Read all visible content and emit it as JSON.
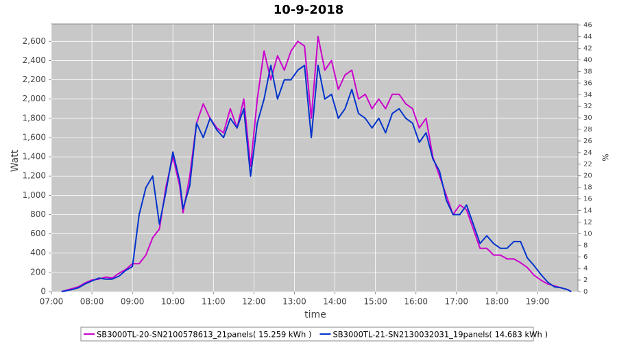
{
  "chart_data": {
    "type": "line",
    "title": "10-9-2018",
    "xlabel": "time",
    "ylabel": "Watt",
    "y2label": "%",
    "x": [
      "07:15",
      "07:30",
      "07:40",
      "07:50",
      "08:00",
      "08:10",
      "08:20",
      "08:30",
      "08:40",
      "08:50",
      "09:00",
      "09:10",
      "09:20",
      "09:30",
      "09:40",
      "09:50",
      "10:00",
      "10:10",
      "10:15",
      "10:25",
      "10:35",
      "10:45",
      "10:55",
      "11:05",
      "11:15",
      "11:25",
      "11:35",
      "11:45",
      "11:55",
      "12:05",
      "12:15",
      "12:25",
      "12:35",
      "12:45",
      "12:55",
      "13:05",
      "13:15",
      "13:25",
      "13:35",
      "13:45",
      "13:55",
      "14:05",
      "14:15",
      "14:25",
      "14:35",
      "14:45",
      "14:55",
      "15:05",
      "15:15",
      "15:25",
      "15:35",
      "15:45",
      "15:55",
      "16:05",
      "16:15",
      "16:25",
      "16:35",
      "16:45",
      "16:55",
      "17:05",
      "17:15",
      "17:25",
      "17:35",
      "17:45",
      "17:55",
      "18:05",
      "18:15",
      "18:25",
      "18:35",
      "18:45",
      "18:55",
      "19:05",
      "19:15",
      "19:25",
      "19:35",
      "19:45",
      "19:50"
    ],
    "series": [
      {
        "name": "SB3000TL-20-SN2100578613_21panels( 15.259 kWh )",
        "color": "#cc00cc",
        "values": [
          0,
          30,
          50,
          90,
          120,
          130,
          150,
          140,
          190,
          230,
          290,
          290,
          380,
          560,
          650,
          1100,
          1400,
          1100,
          820,
          1200,
          1750,
          1950,
          1800,
          1700,
          1650,
          1900,
          1700,
          2000,
          1300,
          2000,
          2500,
          2200,
          2450,
          2300,
          2500,
          2600,
          2550,
          1800,
          2650,
          2300,
          2400,
          2100,
          2250,
          2300,
          2000,
          2050,
          1900,
          2000,
          1900,
          2050,
          2050,
          1950,
          1900,
          1700,
          1800,
          1400,
          1200,
          1000,
          800,
          900,
          850,
          650,
          450,
          450,
          380,
          380,
          340,
          340,
          300,
          250,
          170,
          120,
          80,
          60,
          40,
          20,
          0
        ]
      },
      {
        "name": "SB3000TL-21-SN2130032031_19panels( 14.683 kWh )",
        "color": "#0033cc",
        "values": [
          0,
          20,
          40,
          80,
          110,
          140,
          130,
          130,
          160,
          220,
          260,
          800,
          1080,
          1200,
          700,
          1050,
          1450,
          1150,
          860,
          1100,
          1750,
          1600,
          1800,
          1680,
          1600,
          1800,
          1700,
          1900,
          1200,
          1750,
          2000,
          2350,
          2000,
          2200,
          2200,
          2300,
          2350,
          1600,
          2350,
          2000,
          2050,
          1800,
          1900,
          2100,
          1850,
          1800,
          1700,
          1800,
          1650,
          1850,
          1900,
          1800,
          1750,
          1550,
          1650,
          1380,
          1250,
          950,
          800,
          800,
          900,
          700,
          500,
          580,
          500,
          450,
          450,
          520,
          520,
          350,
          270,
          180,
          100,
          50,
          40,
          20,
          0
        ]
      }
    ],
    "xlim": [
      "07:00",
      "20:00"
    ],
    "xticks": [
      "07:00",
      "08:00",
      "09:00",
      "10:00",
      "11:00",
      "12:00",
      "13:00",
      "14:00",
      "15:00",
      "16:00",
      "17:00",
      "18:00",
      "19:00"
    ],
    "ylim": [
      0,
      2780
    ],
    "yticks": [
      0,
      200,
      400,
      600,
      800,
      {
        "value": 1000,
        "label": "1,000"
      },
      {
        "value": 1200,
        "label": "1,200"
      },
      {
        "value": 1400,
        "label": "1,400"
      },
      {
        "value": 1600,
        "label": "1,600"
      },
      {
        "value": 1800,
        "label": "1,800"
      },
      {
        "value": 2000,
        "label": "2,000"
      },
      {
        "value": 2200,
        "label": "2,200"
      },
      {
        "value": 2400,
        "label": "2,400"
      },
      {
        "value": 2600,
        "label": "2,600"
      }
    ],
    "y2lim": [
      0,
      46.2
    ],
    "y2ticks": [
      0,
      2,
      4,
      6,
      8,
      10,
      12,
      14,
      16,
      18,
      20,
      22,
      24,
      26,
      28,
      30,
      32,
      34,
      36,
      38,
      40,
      42,
      44,
      46
    ],
    "grid": true
  }
}
